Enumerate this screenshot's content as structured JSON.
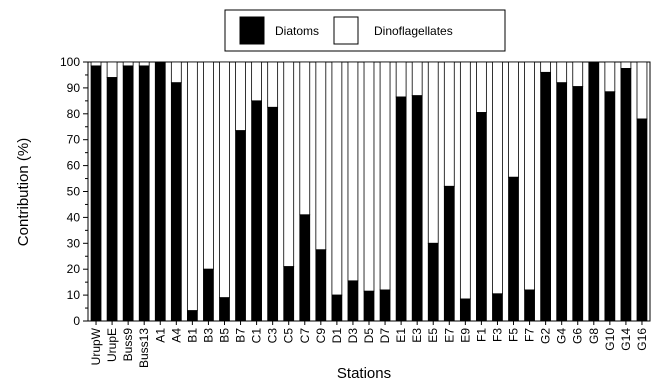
{
  "chart_data": {
    "type": "bar",
    "stacked": true,
    "xlabel": "Stations",
    "ylabel": "Contribution (%)",
    "ylim": [
      0,
      100
    ],
    "yticks": [
      0,
      10,
      20,
      30,
      40,
      50,
      60,
      70,
      80,
      90,
      100
    ],
    "legend_position": "top-center",
    "categories": [
      "UrupW",
      "UrupE",
      "Buss9",
      "Buss13",
      "A1",
      "A4",
      "B1",
      "B3",
      "B5",
      "B7",
      "C1",
      "C3",
      "C5",
      "C7",
      "C9",
      "D1",
      "D3",
      "D5",
      "D7",
      "E1",
      "E3",
      "E5",
      "E7",
      "E9",
      "F1",
      "F3",
      "F5",
      "F7",
      "G2",
      "G4",
      "G6",
      "G8",
      "G10",
      "G14",
      "G16"
    ],
    "series": [
      {
        "name": "Diatoms",
        "color": "#000000",
        "values": [
          98.5,
          94,
          98.5,
          98.5,
          100,
          92,
          4,
          20,
          9,
          73.5,
          85,
          82.5,
          21,
          41,
          27.5,
          10,
          15.5,
          11.5,
          12,
          86.5,
          87,
          30,
          52,
          8.5,
          80.5,
          10.5,
          55.5,
          12,
          96,
          92,
          90.5,
          100,
          88.5,
          97.5,
          78
        ]
      },
      {
        "name": "Dinoflagellates",
        "color": "#ffffff",
        "values": [
          1.5,
          6,
          1.5,
          1.5,
          0,
          8,
          96,
          80,
          91,
          26.5,
          15,
          17.5,
          79,
          59,
          72.5,
          90,
          84.5,
          88.5,
          88,
          13.5,
          13,
          70,
          48,
          91.5,
          19.5,
          89.5,
          44.5,
          88,
          4,
          8,
          9.5,
          0,
          11.5,
          2.5,
          22
        ]
      }
    ]
  }
}
